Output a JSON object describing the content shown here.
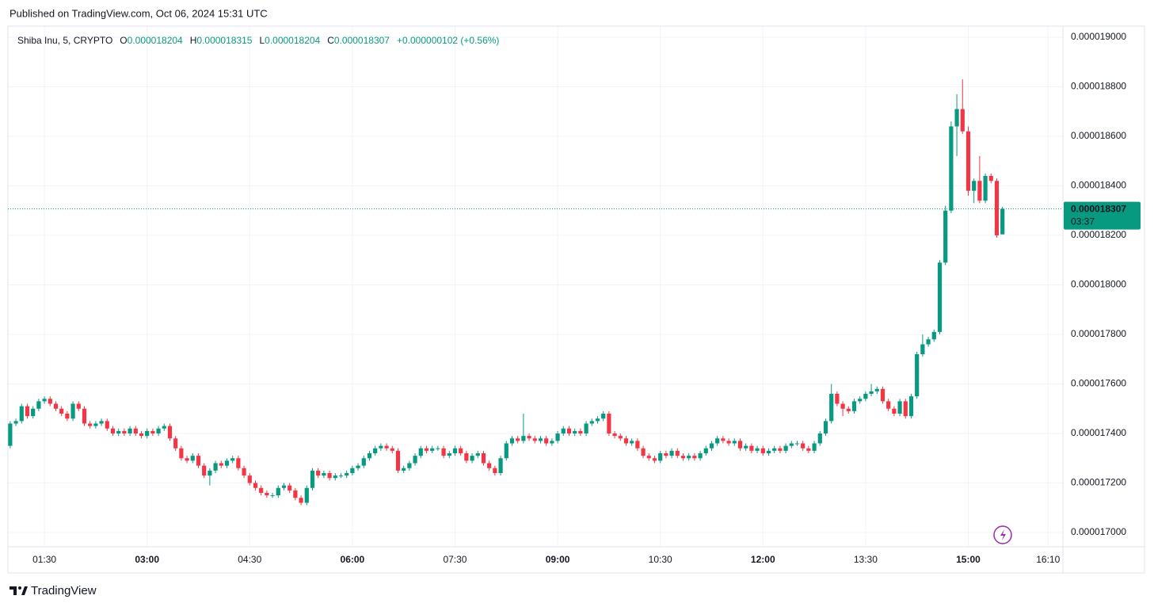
{
  "header": {
    "published": "Published on TradingView.com, Oct 06, 2024 15:31 UTC"
  },
  "footer": {
    "brand": "TradingView"
  },
  "chart_data": {
    "type": "candlestick",
    "symbol": "Shiba Inu, 5, CRYPTO",
    "ohlc_labels": [
      "O",
      "H",
      "L",
      "C"
    ],
    "ohlc_values": [
      "0.000018204",
      "0.000018315",
      "0.000018204",
      "0.000018307"
    ],
    "change": "+0.000000102 (+0.56%)",
    "last_price_label": "0.000018307",
    "countdown": "03:37",
    "up_color": "#089981",
    "down_color": "#f23645",
    "grid": true,
    "xlim": [
      "00:58",
      "16:23"
    ],
    "ylim": [
      1.69424e-05,
      1.90448e-05
    ],
    "xticks": [
      "01:30",
      "03:00",
      "04:30",
      "06:00",
      "07:30",
      "09:00",
      "10:30",
      "12:00",
      "13:30",
      "15:00",
      "16:10"
    ],
    "yticks": [
      {
        "value": 1.7e-05,
        "label": "0.000017000"
      },
      {
        "value": 1.72e-05,
        "label": "0.000017200"
      },
      {
        "value": 1.74e-05,
        "label": "0.000017400"
      },
      {
        "value": 1.76e-05,
        "label": "0.000017600"
      },
      {
        "value": 1.78e-05,
        "label": "0.000017800"
      },
      {
        "value": 1.8e-05,
        "label": "0.000018000"
      },
      {
        "value": 1.82e-05,
        "label": "0.000018200"
      },
      {
        "value": 1.84e-05,
        "label": "0.000018400"
      },
      {
        "value": 1.86e-05,
        "label": "0.000018600"
      },
      {
        "value": 1.88e-05,
        "label": "0.000018800"
      },
      {
        "value": 1.9e-05,
        "label": "0.000019000"
      }
    ],
    "x": [
      "01:00",
      "01:05",
      "01:10",
      "01:15",
      "01:20",
      "01:25",
      "01:30",
      "01:35",
      "01:40",
      "01:45",
      "01:50",
      "01:55",
      "02:00",
      "02:05",
      "02:10",
      "02:15",
      "02:20",
      "02:25",
      "02:30",
      "02:35",
      "02:40",
      "02:45",
      "02:50",
      "02:55",
      "03:00",
      "03:05",
      "03:10",
      "03:15",
      "03:20",
      "03:25",
      "03:30",
      "03:35",
      "03:40",
      "03:45",
      "03:50",
      "03:55",
      "04:00",
      "04:05",
      "04:10",
      "04:15",
      "04:20",
      "04:25",
      "04:30",
      "04:35",
      "04:40",
      "04:45",
      "04:50",
      "04:55",
      "05:00",
      "05:05",
      "05:10",
      "05:15",
      "05:20",
      "05:25",
      "05:30",
      "05:35",
      "05:40",
      "05:45",
      "05:50",
      "05:55",
      "06:00",
      "06:05",
      "06:10",
      "06:15",
      "06:20",
      "06:25",
      "06:30",
      "06:35",
      "06:40",
      "06:45",
      "06:50",
      "06:55",
      "07:00",
      "07:05",
      "07:10",
      "07:15",
      "07:20",
      "07:25",
      "07:30",
      "07:35",
      "07:40",
      "07:45",
      "07:50",
      "07:55",
      "08:00",
      "08:05",
      "08:10",
      "08:15",
      "08:20",
      "08:25",
      "08:30",
      "08:35",
      "08:40",
      "08:45",
      "08:50",
      "08:55",
      "09:00",
      "09:05",
      "09:10",
      "09:15",
      "09:20",
      "09:25",
      "09:30",
      "09:35",
      "09:40",
      "09:45",
      "09:50",
      "09:55",
      "10:00",
      "10:05",
      "10:10",
      "10:15",
      "10:20",
      "10:25",
      "10:30",
      "10:35",
      "10:40",
      "10:45",
      "10:50",
      "10:55",
      "11:00",
      "11:05",
      "11:10",
      "11:15",
      "11:20",
      "11:25",
      "11:30",
      "11:35",
      "11:40",
      "11:45",
      "11:50",
      "11:55",
      "12:00",
      "12:05",
      "12:10",
      "12:15",
      "12:20",
      "12:25",
      "12:30",
      "12:35",
      "12:40",
      "12:45",
      "12:50",
      "12:55",
      "13:00",
      "13:05",
      "13:10",
      "13:15",
      "13:20",
      "13:25",
      "13:30",
      "13:35",
      "13:40",
      "13:45",
      "13:50",
      "13:55",
      "14:00",
      "14:05",
      "14:10",
      "14:15",
      "14:20",
      "14:25",
      "14:30",
      "14:35",
      "14:40",
      "14:45",
      "14:50",
      "14:55",
      "15:00",
      "15:05",
      "15:10",
      "15:15",
      "15:20",
      "15:25",
      "15:30"
    ],
    "open": [
      1.735e-05,
      1.744e-05,
      1.745e-05,
      1.751e-05,
      1.747e-05,
      1.75e-05,
      1.753e-05,
      1.754e-05,
      1.752e-05,
      1.75e-05,
      1.748e-05,
      1.746e-05,
      1.752e-05,
      1.75e-05,
      1.744e-05,
      1.743e-05,
      1.744e-05,
      1.745e-05,
      1.742e-05,
      1.74e-05,
      1.741e-05,
      1.74e-05,
      1.742e-05,
      1.74e-05,
      1.739e-05,
      1.741e-05,
      1.74e-05,
      1.742e-05,
      1.743e-05,
      1.738e-05,
      1.734e-05,
      1.73e-05,
      1.729e-05,
      1.731e-05,
      1.727e-05,
      1.723e-05,
      1.725e-05,
      1.728e-05,
      1.727e-05,
      1.729e-05,
      1.73e-05,
      1.726e-05,
      1.723e-05,
      1.72e-05,
      1.718e-05,
      1.716e-05,
      1.715e-05,
      1.715e-05,
      1.718e-05,
      1.719e-05,
      1.717e-05,
      1.714e-05,
      1.712e-05,
      1.718e-05,
      1.725e-05,
      1.723e-05,
      1.724e-05,
      1.722e-05,
      1.723e-05,
      1.723e-05,
      1.724e-05,
      1.726e-05,
      1.727e-05,
      1.73e-05,
      1.732e-05,
      1.734e-05,
      1.735e-05,
      1.734e-05,
      1.733e-05,
      1.725e-05,
      1.726e-05,
      1.728e-05,
      1.731e-05,
      1.734e-05,
      1.733e-05,
      1.734e-05,
      1.734e-05,
      1.731e-05,
      1.732e-05,
      1.734e-05,
      1.732e-05,
      1.729e-05,
      1.731e-05,
      1.732e-05,
      1.728e-05,
      1.726e-05,
      1.724e-05,
      1.73e-05,
      1.736e-05,
      1.738e-05,
      1.737e-05,
      1.739e-05,
      1.738e-05,
      1.737e-05,
      1.738e-05,
      1.736e-05,
      1.737e-05,
      1.74e-05,
      1.742e-05,
      1.74e-05,
      1.741e-05,
      1.74e-05,
      1.744e-05,
      1.745e-05,
      1.746e-05,
      1.748e-05,
      1.74e-05,
      1.739e-05,
      1.738e-05,
      1.736e-05,
      1.737e-05,
      1.734e-05,
      1.731e-05,
      1.73e-05,
      1.729e-05,
      1.732e-05,
      1.731e-05,
      1.733e-05,
      1.731e-05,
      1.73e-05,
      1.731e-05,
      1.73e-05,
      1.732e-05,
      1.734e-05,
      1.736e-05,
      1.738e-05,
      1.737e-05,
      1.736e-05,
      1.737e-05,
      1.734e-05,
      1.735e-05,
      1.733e-05,
      1.734e-05,
      1.732e-05,
      1.733e-05,
      1.734e-05,
      1.733e-05,
      1.735e-05,
      1.736e-05,
      1.736e-05,
      1.734e-05,
      1.733e-05,
      1.736e-05,
      1.74e-05,
      1.745e-05,
      1.756e-05,
      1.752e-05,
      1.75e-05,
      1.749e-05,
      1.753e-05,
      1.754e-05,
      1.756e-05,
      1.757e-05,
      1.758e-05,
      1.753e-05,
      1.75e-05,
      1.748e-05,
      1.753e-05,
      1.747e-05,
      1.755e-05,
      1.772e-05,
      1.776e-05,
      1.778e-05,
      1.781e-05,
      1.809e-05,
      1.83e-05,
      1.864e-05,
      1.871e-05,
      1.862e-05,
      1.838e-05,
      1.842e-05,
      1.834e-05,
      1.844e-05,
      1.842e-05,
      1.8204e-05
    ],
    "high": [
      1.745e-05,
      1.746e-05,
      1.752e-05,
      1.752e-05,
      1.751e-05,
      1.754e-05,
      1.755e-05,
      1.755e-05,
      1.753e-05,
      1.751e-05,
      1.749e-05,
      1.753e-05,
      1.753e-05,
      1.751e-05,
      1.745e-05,
      1.745e-05,
      1.746e-05,
      1.746e-05,
      1.743e-05,
      1.742e-05,
      1.742e-05,
      1.743e-05,
      1.743e-05,
      1.741e-05,
      1.742e-05,
      1.742e-05,
      1.743e-05,
      1.744e-05,
      1.744e-05,
      1.739e-05,
      1.735e-05,
      1.731e-05,
      1.732e-05,
      1.732e-05,
      1.728e-05,
      1.726e-05,
      1.729e-05,
      1.729e-05,
      1.73e-05,
      1.731e-05,
      1.731e-05,
      1.727e-05,
      1.724e-05,
      1.721e-05,
      1.719e-05,
      1.717e-05,
      1.716e-05,
      1.719e-05,
      1.72e-05,
      1.72e-05,
      1.718e-05,
      1.715e-05,
      1.719e-05,
      1.726e-05,
      1.726e-05,
      1.725e-05,
      1.725e-05,
      1.724e-05,
      1.724e-05,
      1.725e-05,
      1.727e-05,
      1.728e-05,
      1.731e-05,
      1.733e-05,
      1.735e-05,
      1.736e-05,
      1.736e-05,
      1.735e-05,
      1.734e-05,
      1.727e-05,
      1.729e-05,
      1.732e-05,
      1.735e-05,
      1.735e-05,
      1.735e-05,
      1.735e-05,
      1.735e-05,
      1.733e-05,
      1.735e-05,
      1.735e-05,
      1.733e-05,
      1.732e-05,
      1.733e-05,
      1.733e-05,
      1.729e-05,
      1.727e-05,
      1.731e-05,
      1.737e-05,
      1.739e-05,
      1.739e-05,
      1.748e-05,
      1.74e-05,
      1.739e-05,
      1.739e-05,
      1.739e-05,
      1.738e-05,
      1.741e-05,
      1.743e-05,
      1.743e-05,
      1.742e-05,
      1.742e-05,
      1.745e-05,
      1.746e-05,
      1.747e-05,
      1.749e-05,
      1.749e-05,
      1.741e-05,
      1.74e-05,
      1.739e-05,
      1.738e-05,
      1.738e-05,
      1.735e-05,
      1.732e-05,
      1.731e-05,
      1.733e-05,
      1.733e-05,
      1.734e-05,
      1.734e-05,
      1.732e-05,
      1.732e-05,
      1.732e-05,
      1.733e-05,
      1.735e-05,
      1.737e-05,
      1.739e-05,
      1.739e-05,
      1.738e-05,
      1.738e-05,
      1.738e-05,
      1.736e-05,
      1.736e-05,
      1.735e-05,
      1.735e-05,
      1.734e-05,
      1.735e-05,
      1.735e-05,
      1.736e-05,
      1.737e-05,
      1.737e-05,
      1.737e-05,
      1.735e-05,
      1.737e-05,
      1.741e-05,
      1.746e-05,
      1.76e-05,
      1.757e-05,
      1.753e-05,
      1.751e-05,
      1.754e-05,
      1.755e-05,
      1.757e-05,
      1.76e-05,
      1.759e-05,
      1.759e-05,
      1.754e-05,
      1.751e-05,
      1.754e-05,
      1.754e-05,
      1.756e-05,
      1.773e-05,
      1.78e-05,
      1.779e-05,
      1.782e-05,
      1.81e-05,
      1.832e-05,
      1.866e-05,
      1.877e-05,
      1.883e-05,
      1.864e-05,
      1.843e-05,
      1.852e-05,
      1.845e-05,
      1.845e-05,
      1.843e-05,
      1.8315e-05
    ],
    "low": [
      1.734e-05,
      1.743e-05,
      1.744e-05,
      1.746e-05,
      1.746e-05,
      1.749e-05,
      1.752e-05,
      1.751e-05,
      1.749e-05,
      1.747e-05,
      1.745e-05,
      1.745e-05,
      1.749e-05,
      1.743e-05,
      1.742e-05,
      1.742e-05,
      1.743e-05,
      1.741e-05,
      1.739e-05,
      1.739e-05,
      1.739e-05,
      1.739e-05,
      1.739e-05,
      1.738e-05,
      1.738e-05,
      1.739e-05,
      1.739e-05,
      1.741e-05,
      1.737e-05,
      1.733e-05,
      1.729e-05,
      1.728e-05,
      1.728e-05,
      1.726e-05,
      1.722e-05,
      1.719e-05,
      1.724e-05,
      1.726e-05,
      1.726e-05,
      1.728e-05,
      1.725e-05,
      1.722e-05,
      1.719e-05,
      1.717e-05,
      1.715e-05,
      1.714e-05,
      1.714e-05,
      1.714e-05,
      1.717e-05,
      1.716e-05,
      1.713e-05,
      1.711e-05,
      1.711e-05,
      1.717e-05,
      1.722e-05,
      1.722e-05,
      1.721e-05,
      1.721e-05,
      1.722e-05,
      1.722e-05,
      1.723e-05,
      1.725e-05,
      1.726e-05,
      1.729e-05,
      1.731e-05,
      1.733e-05,
      1.733e-05,
      1.732e-05,
      1.724e-05,
      1.724e-05,
      1.725e-05,
      1.727e-05,
      1.73e-05,
      1.732e-05,
      1.732e-05,
      1.733e-05,
      1.73e-05,
      1.73e-05,
      1.731e-05,
      1.731e-05,
      1.728e-05,
      1.728e-05,
      1.73e-05,
      1.727e-05,
      1.725e-05,
      1.723e-05,
      1.723e-05,
      1.729e-05,
      1.735e-05,
      1.736e-05,
      1.736e-05,
      1.737e-05,
      1.736e-05,
      1.736e-05,
      1.735e-05,
      1.735e-05,
      1.736e-05,
      1.739e-05,
      1.739e-05,
      1.739e-05,
      1.739e-05,
      1.739e-05,
      1.743e-05,
      1.744e-05,
      1.745e-05,
      1.739e-05,
      1.738e-05,
      1.737e-05,
      1.735e-05,
      1.735e-05,
      1.733e-05,
      1.73e-05,
      1.729e-05,
      1.728e-05,
      1.728e-05,
      1.73e-05,
      1.73e-05,
      1.73e-05,
      1.729e-05,
      1.729e-05,
      1.729e-05,
      1.729e-05,
      1.731e-05,
      1.733e-05,
      1.735e-05,
      1.736e-05,
      1.735e-05,
      1.735e-05,
      1.733e-05,
      1.733e-05,
      1.732e-05,
      1.732e-05,
      1.731e-05,
      1.731e-05,
      1.732e-05,
      1.732e-05,
      1.732e-05,
      1.734e-05,
      1.735e-05,
      1.733e-05,
      1.732e-05,
      1.732e-05,
      1.735e-05,
      1.739e-05,
      1.744e-05,
      1.751e-05,
      1.747e-05,
      1.748e-05,
      1.748e-05,
      1.752e-05,
      1.753e-05,
      1.755e-05,
      1.756e-05,
      1.752e-05,
      1.749e-05,
      1.747e-05,
      1.747e-05,
      1.746e-05,
      1.746e-05,
      1.754e-05,
      1.771e-05,
      1.775e-05,
      1.777e-05,
      1.78e-05,
      1.808e-05,
      1.829e-05,
      1.852e-05,
      1.861e-05,
      1.836e-05,
      1.833e-05,
      1.833e-05,
      1.833e-05,
      1.841e-05,
      1.819e-05,
      1.8204e-05
    ],
    "close": [
      1.744e-05,
      1.745e-05,
      1.751e-05,
      1.747e-05,
      1.75e-05,
      1.753e-05,
      1.754e-05,
      1.752e-05,
      1.75e-05,
      1.748e-05,
      1.746e-05,
      1.752e-05,
      1.75e-05,
      1.744e-05,
      1.743e-05,
      1.744e-05,
      1.745e-05,
      1.742e-05,
      1.74e-05,
      1.741e-05,
      1.74e-05,
      1.742e-05,
      1.74e-05,
      1.739e-05,
      1.741e-05,
      1.74e-05,
      1.742e-05,
      1.743e-05,
      1.738e-05,
      1.734e-05,
      1.73e-05,
      1.729e-05,
      1.731e-05,
      1.727e-05,
      1.723e-05,
      1.725e-05,
      1.728e-05,
      1.727e-05,
      1.729e-05,
      1.73e-05,
      1.726e-05,
      1.723e-05,
      1.72e-05,
      1.718e-05,
      1.716e-05,
      1.715e-05,
      1.715e-05,
      1.718e-05,
      1.719e-05,
      1.717e-05,
      1.714e-05,
      1.712e-05,
      1.718e-05,
      1.725e-05,
      1.723e-05,
      1.724e-05,
      1.722e-05,
      1.723e-05,
      1.723e-05,
      1.724e-05,
      1.726e-05,
      1.727e-05,
      1.73e-05,
      1.732e-05,
      1.734e-05,
      1.735e-05,
      1.734e-05,
      1.733e-05,
      1.725e-05,
      1.726e-05,
      1.728e-05,
      1.731e-05,
      1.734e-05,
      1.733e-05,
      1.734e-05,
      1.734e-05,
      1.731e-05,
      1.732e-05,
      1.734e-05,
      1.732e-05,
      1.729e-05,
      1.731e-05,
      1.732e-05,
      1.728e-05,
      1.726e-05,
      1.724e-05,
      1.73e-05,
      1.736e-05,
      1.738e-05,
      1.737e-05,
      1.739e-05,
      1.738e-05,
      1.737e-05,
      1.738e-05,
      1.736e-05,
      1.737e-05,
      1.74e-05,
      1.742e-05,
      1.74e-05,
      1.741e-05,
      1.74e-05,
      1.744e-05,
      1.745e-05,
      1.746e-05,
      1.748e-05,
      1.74e-05,
      1.739e-05,
      1.738e-05,
      1.736e-05,
      1.737e-05,
      1.734e-05,
      1.731e-05,
      1.73e-05,
      1.729e-05,
      1.732e-05,
      1.731e-05,
      1.733e-05,
      1.731e-05,
      1.73e-05,
      1.731e-05,
      1.73e-05,
      1.732e-05,
      1.734e-05,
      1.736e-05,
      1.738e-05,
      1.737e-05,
      1.736e-05,
      1.737e-05,
      1.734e-05,
      1.735e-05,
      1.733e-05,
      1.734e-05,
      1.732e-05,
      1.733e-05,
      1.734e-05,
      1.733e-05,
      1.735e-05,
      1.736e-05,
      1.736e-05,
      1.734e-05,
      1.733e-05,
      1.736e-05,
      1.74e-05,
      1.745e-05,
      1.756e-05,
      1.752e-05,
      1.75e-05,
      1.749e-05,
      1.753e-05,
      1.754e-05,
      1.756e-05,
      1.757e-05,
      1.758e-05,
      1.753e-05,
      1.75e-05,
      1.748e-05,
      1.753e-05,
      1.747e-05,
      1.755e-05,
      1.772e-05,
      1.776e-05,
      1.778e-05,
      1.781e-05,
      1.809e-05,
      1.83e-05,
      1.864e-05,
      1.871e-05,
      1.862e-05,
      1.838e-05,
      1.842e-05,
      1.834e-05,
      1.844e-05,
      1.842e-05,
      1.82e-05,
      1.8307e-05
    ]
  }
}
